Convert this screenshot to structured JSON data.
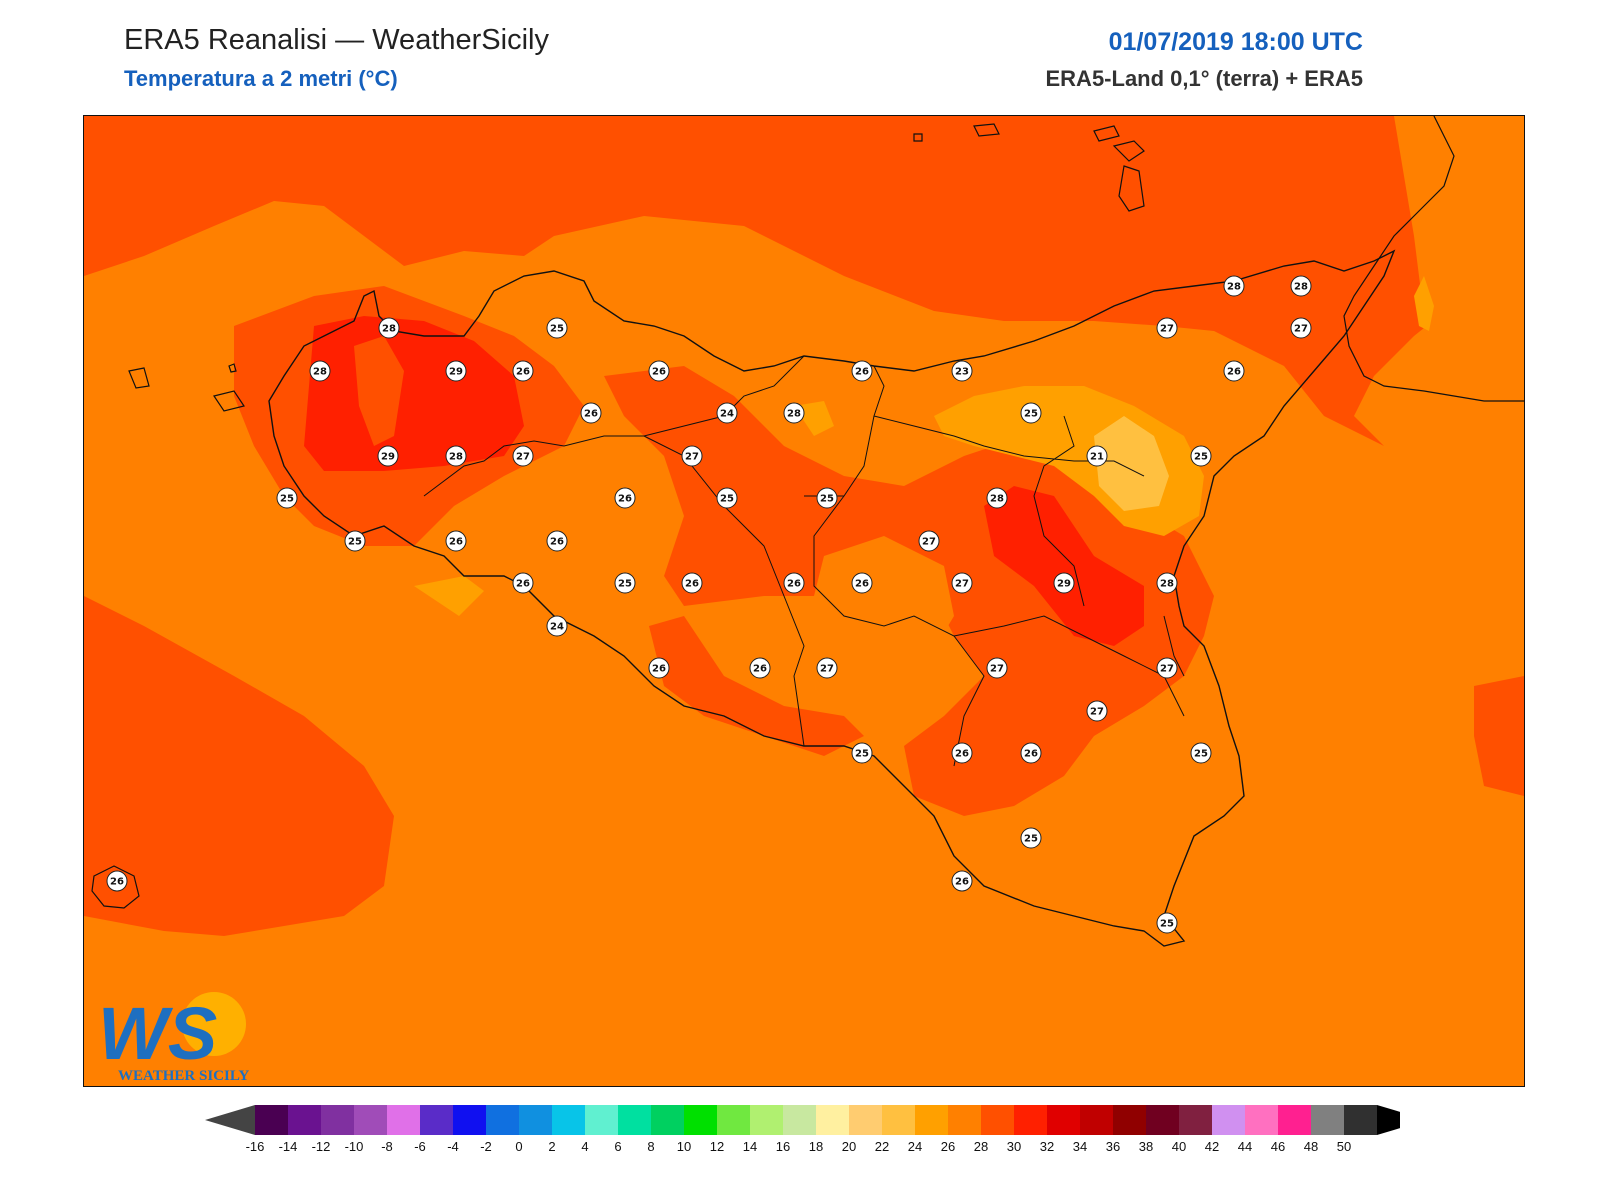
{
  "header": {
    "title": "ERA5 Reanalisi — WeatherSicily",
    "subtitle": "Temperatura a 2 metri (°C)",
    "datetime": "01/07/2019 18:00 UTC",
    "model": "ERA5-Land 0,1° (terra) + ERA5"
  },
  "logo": {
    "initials": "WS",
    "text": "WEATHER SICILY"
  },
  "stations": [
    {
      "t": "28"
    },
    {
      "t": "25"
    },
    {
      "t": "28"
    },
    {
      "t": "29"
    },
    {
      "t": "26"
    },
    {
      "t": "26"
    },
    {
      "t": "26"
    },
    {
      "t": "26"
    },
    {
      "t": "24"
    },
    {
      "t": "28"
    },
    {
      "t": "29"
    },
    {
      "t": "28"
    },
    {
      "t": "27"
    },
    {
      "t": "27"
    },
    {
      "t": "25"
    },
    {
      "t": "26"
    },
    {
      "t": "25"
    },
    {
      "t": "25"
    },
    {
      "t": "25"
    },
    {
      "t": "26"
    },
    {
      "t": "26"
    },
    {
      "t": "26"
    },
    {
      "t": "25"
    },
    {
      "t": "26"
    },
    {
      "t": "26"
    },
    {
      "t": "26"
    },
    {
      "t": "24"
    },
    {
      "t": "26"
    },
    {
      "t": "26"
    },
    {
      "t": "27"
    },
    {
      "t": "25"
    },
    {
      "t": "23"
    },
    {
      "t": "25"
    },
    {
      "t": "21"
    },
    {
      "t": "25"
    },
    {
      "t": "28"
    },
    {
      "t": "27"
    },
    {
      "t": "27"
    },
    {
      "t": "29"
    },
    {
      "t": "28"
    },
    {
      "t": "27"
    },
    {
      "t": "27"
    },
    {
      "t": "27"
    },
    {
      "t": "26"
    },
    {
      "t": "26"
    },
    {
      "t": "25"
    },
    {
      "t": "25"
    },
    {
      "t": "26"
    },
    {
      "t": "25"
    },
    {
      "t": "28"
    },
    {
      "t": "28"
    },
    {
      "t": "27"
    },
    {
      "t": "27"
    },
    {
      "t": "26"
    },
    {
      "t": "26"
    }
  ],
  "colorbar": {
    "ticks": [
      "-16",
      "-14",
      "-12",
      "-10",
      "-8",
      "-6",
      "-4",
      "-2",
      "0",
      "2",
      "4",
      "6",
      "8",
      "10",
      "12",
      "14",
      "16",
      "18",
      "20",
      "22",
      "24",
      "26",
      "28",
      "30",
      "32",
      "34",
      "36",
      "38",
      "40",
      "42",
      "44",
      "46",
      "48",
      "50"
    ],
    "colors": [
      "#4a0052",
      "#6a1290",
      "#8030a0",
      "#a04cb8",
      "#e070e8",
      "#5a2cc8",
      "#1010f0",
      "#1070e0",
      "#1090e0",
      "#08c4e8",
      "#60f0d0",
      "#00e0a0",
      "#00d060",
      "#00e000",
      "#70e840",
      "#b0f070",
      "#c8e8a0",
      "#fff0a0",
      "#ffcc70",
      "#ffc040",
      "#ffa000",
      "#ff8000",
      "#ff5000",
      "#ff2000",
      "#e00000",
      "#c00000",
      "#900000",
      "#700020",
      "#802040",
      "#d090f0",
      "#ff70c0",
      "#ff2090",
      "#808080",
      "#303030"
    ],
    "under_color": "#444444",
    "over_color": "#000000"
  }
}
